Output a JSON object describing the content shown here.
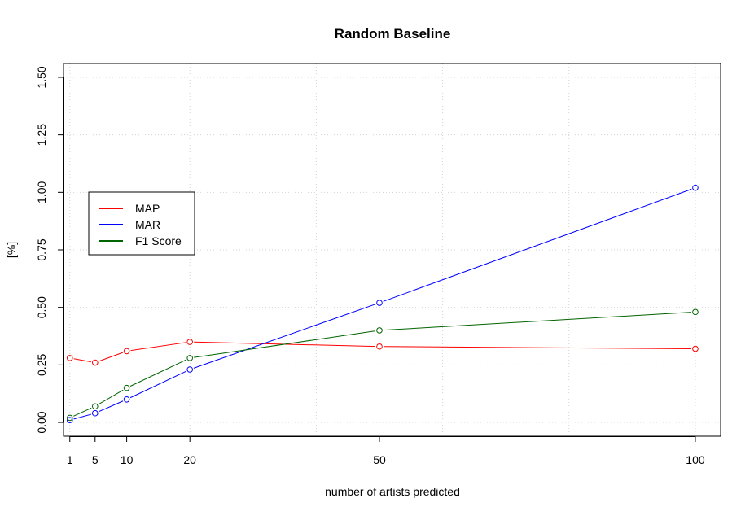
{
  "chart_data": {
    "type": "line",
    "title": "Random Baseline",
    "xlabel": "number of artists predicted",
    "ylabel": "[%]",
    "x": [
      1,
      5,
      10,
      20,
      50,
      100
    ],
    "x_ticks": [
      1,
      5,
      10,
      20,
      50,
      100
    ],
    "y_ticks": [
      "0.00",
      "0.25",
      "0.50",
      "0.75",
      "1.00",
      "1.25",
      "1.50"
    ],
    "xlim": [
      0,
      104
    ],
    "ylim": [
      -0.06,
      1.56
    ],
    "grid": true,
    "legend_position": "left",
    "series": [
      {
        "name": "MAP",
        "color": "#ff0000",
        "values": [
          0.28,
          0.26,
          0.31,
          0.35,
          0.33,
          0.32
        ]
      },
      {
        "name": "MAR",
        "color": "#0000ff",
        "values": [
          0.01,
          0.04,
          0.1,
          0.23,
          0.52,
          1.02
        ]
      },
      {
        "name": "F1 Score",
        "color": "#006400",
        "values": [
          0.02,
          0.07,
          0.15,
          0.28,
          0.4,
          0.48
        ]
      }
    ]
  }
}
